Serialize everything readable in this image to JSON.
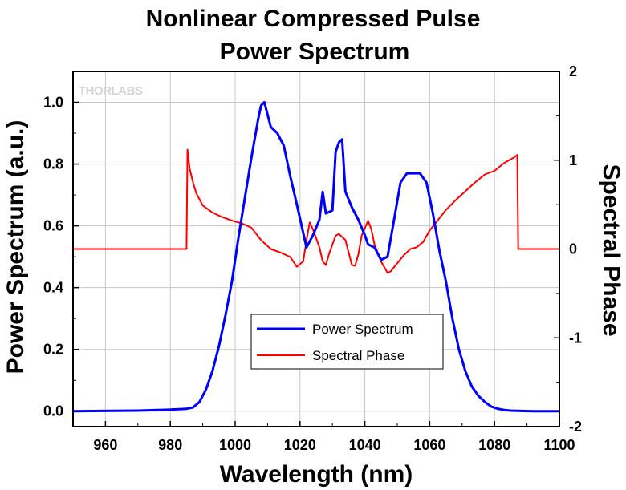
{
  "chart_data": {
    "type": "line",
    "title": [
      "Nonlinear Compressed Pulse",
      "Power Spectrum"
    ],
    "xlabel": "Wavelength (nm)",
    "ylabel_left": "Power Spectrum (a.u.)",
    "ylabel_right": "Spectral Phase",
    "xlim": [
      950,
      1100
    ],
    "ylim_left": [
      -0.05,
      1.1
    ],
    "ylim_right": [
      -2,
      2
    ],
    "x_ticks": [
      "960",
      "980",
      "1000",
      "1020",
      "1040",
      "1060",
      "1080",
      "1100"
    ],
    "y_left_ticks": [
      "0.0",
      "0.2",
      "0.4",
      "0.6",
      "0.8",
      "1.0"
    ],
    "y_right_ticks": [
      "-2",
      "-1",
      "0",
      "1",
      "2"
    ],
    "grid": true,
    "legend_position": "lower-center",
    "logo_text": "THORLABS",
    "series": [
      {
        "name": "Power Spectrum",
        "axis": "left",
        "color": "#0000ff",
        "x": [
          950,
          970,
          980,
          985,
          987,
          989,
          991,
          993,
          995,
          997,
          999,
          1001,
          1003,
          1005,
          1007,
          1008,
          1009,
          1011,
          1013,
          1015,
          1017,
          1019,
          1022,
          1024,
          1026,
          1027,
          1028,
          1030,
          1031,
          1032,
          1033,
          1034,
          1036,
          1038,
          1040,
          1041,
          1043,
          1045,
          1047,
          1049,
          1051,
          1053,
          1055,
          1057,
          1059,
          1061,
          1063,
          1065,
          1067,
          1069,
          1071,
          1073,
          1075,
          1077,
          1079,
          1081,
          1083,
          1085,
          1088,
          1092,
          1100
        ],
        "y": [
          0.0,
          0.002,
          0.005,
          0.008,
          0.012,
          0.03,
          0.07,
          0.13,
          0.21,
          0.31,
          0.42,
          0.56,
          0.69,
          0.82,
          0.94,
          0.99,
          1.0,
          0.92,
          0.9,
          0.86,
          0.76,
          0.67,
          0.53,
          0.57,
          0.62,
          0.71,
          0.64,
          0.65,
          0.84,
          0.87,
          0.88,
          0.71,
          0.66,
          0.62,
          0.57,
          0.54,
          0.53,
          0.49,
          0.5,
          0.62,
          0.74,
          0.77,
          0.77,
          0.77,
          0.74,
          0.64,
          0.52,
          0.42,
          0.3,
          0.2,
          0.13,
          0.08,
          0.05,
          0.03,
          0.015,
          0.008,
          0.004,
          0.002,
          0.001,
          0.0,
          0.0
        ]
      },
      {
        "name": "Spectral Phase",
        "axis": "right",
        "color": "#ff0000",
        "x": [
          950,
          985,
          985.3,
          986,
          987,
          988,
          990,
          993,
          996,
          999,
          1002,
          1005,
          1008,
          1011,
          1014,
          1017,
          1019,
          1021,
          1022,
          1023,
          1024,
          1026,
          1027,
          1028,
          1029,
          1031,
          1032,
          1034,
          1036,
          1037,
          1038,
          1039,
          1041,
          1042,
          1043,
          1045,
          1047,
          1048,
          1050,
          1052,
          1054,
          1056,
          1058,
          1060,
          1062,
          1065,
          1068,
          1071,
          1074,
          1077,
          1080,
          1083,
          1086,
          1087,
          1087.3,
          1090,
          1100
        ],
        "y": [
          0,
          0,
          1.12,
          0.9,
          0.75,
          0.63,
          0.49,
          0.41,
          0.36,
          0.32,
          0.29,
          0.24,
          0.1,
          0.0,
          -0.04,
          -0.09,
          -0.2,
          -0.14,
          0.1,
          0.3,
          0.22,
          0.02,
          -0.14,
          -0.18,
          -0.05,
          0.15,
          0.17,
          0.1,
          -0.18,
          -0.19,
          -0.06,
          0.15,
          0.32,
          0.22,
          0.05,
          -0.14,
          -0.27,
          -0.25,
          -0.16,
          -0.07,
          0.0,
          0.02,
          0.08,
          0.21,
          0.3,
          0.44,
          0.55,
          0.65,
          0.75,
          0.84,
          0.88,
          0.97,
          1.03,
          1.06,
          0,
          0,
          0
        ]
      }
    ]
  }
}
